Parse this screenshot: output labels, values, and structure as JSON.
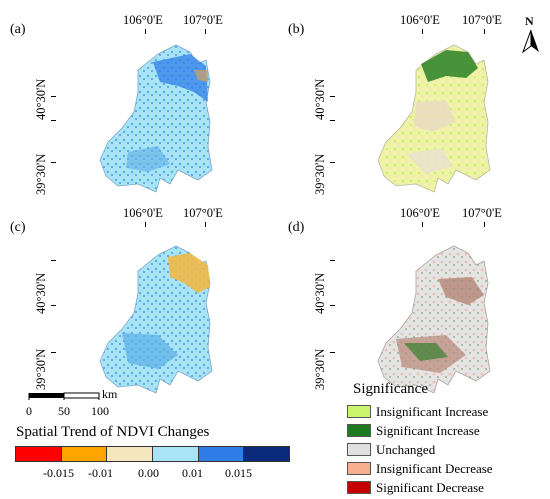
{
  "panels": {
    "a": {
      "label": "(a)",
      "lon": [
        "106°0'E",
        "107°0'E"
      ],
      "lat": [
        "40°30'N",
        "39°30'N"
      ]
    },
    "b": {
      "label": "(b)",
      "lon": [
        "106°0'E",
        "107°0'E"
      ],
      "lat": [
        "40°30'N",
        "39°30'N"
      ]
    },
    "c": {
      "label": "(c)",
      "lon": [
        "106°0'E",
        "107°0'E"
      ],
      "lat": [
        "40°30'N",
        "39°30'N"
      ]
    },
    "d": {
      "label": "(d)",
      "lon": [
        "106°0'E",
        "107°0'E"
      ],
      "lat": [
        "40°30'N",
        "39°30'N"
      ]
    }
  },
  "north_arrow": {
    "letter": "N"
  },
  "scale_bar": {
    "labels": [
      "0",
      "50",
      "100"
    ],
    "unit": "km"
  },
  "trend_legend": {
    "title": "Spatial Trend of NDVI Changes",
    "colors": [
      "#ff0000",
      "#ffa500",
      "#f5e6c0",
      "#a8e4f5",
      "#2f7ee8",
      "#0c2a7a"
    ],
    "ticks": [
      "-0.015",
      "-0.01",
      "0.00",
      "0.01",
      "0.015"
    ]
  },
  "significance_legend": {
    "title": "Significance",
    "items": [
      {
        "label": "Insignificant Increase",
        "color": "#ccf56e"
      },
      {
        "label": "Significant Increase",
        "color": "#1e7a1e"
      },
      {
        "label": "Unchanged",
        "color": "#e0e0e0"
      },
      {
        "label": "Insignificant Decrease",
        "color": "#f7b08f"
      },
      {
        "label": "Significant Decrease",
        "color": "#c40000"
      }
    ]
  }
}
